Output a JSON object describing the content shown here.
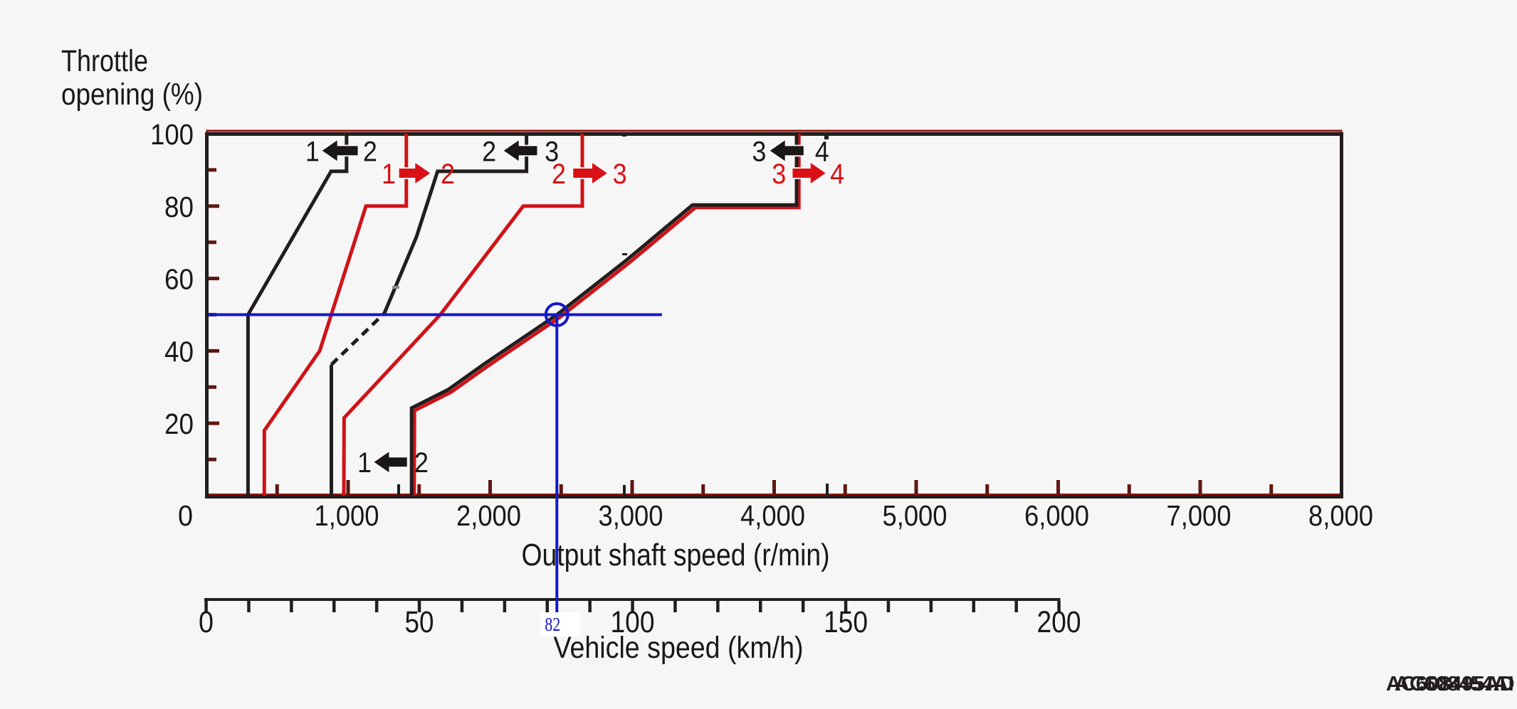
{
  "figure": {
    "background": "#f7f6f6",
    "colors": {
      "black": "#221e1e",
      "red": "#cf1318",
      "red_bright": "#d91116",
      "border_red": "#951712",
      "tick_dark_red": "#5e1712",
      "blue": "#1518c8",
      "text_black": "#1a1716",
      "gray_dash": "#8f8c8c",
      "white": "#ffffff"
    },
    "watermark_codes": [
      "AC608495AD",
      "AC608454AI"
    ]
  },
  "chart_data": {
    "type": "line",
    "title": "",
    "ylabel_lines": [
      "Throttle",
      "opening (%)"
    ],
    "xlabel": "Output shaft speed (r/min)",
    "x2label": "Vehicle speed (km/h)",
    "x_axis": {
      "min": 0,
      "max": 8000,
      "minor_step": 500,
      "major_step": 1000,
      "tick_labels": [
        "0",
        "1,000",
        "2,000",
        "3,000",
        "4,000",
        "5,000",
        "6,000",
        "7,000",
        "8,000"
      ]
    },
    "y_axis": {
      "min": 0,
      "max": 100,
      "minor_step": 10,
      "major_step": 20,
      "tick_labels": [
        "0",
        "20",
        "40",
        "60",
        "80",
        "100"
      ]
    },
    "x2_axis": {
      "min": 0,
      "max": 200,
      "minor_step": 10,
      "label_step": 50,
      "tick_labels": [
        "0",
        "50",
        "100",
        "150",
        "200"
      ]
    },
    "grid": false,
    "legend": false,
    "series": [
      {
        "id": "upshift-1-2",
        "name": "1-2 upshift",
        "color": "red",
        "style": "solid",
        "points": [
          [
            410,
            0
          ],
          [
            410,
            18
          ],
          [
            800,
            40
          ],
          [
            1126,
            80
          ],
          [
            1410,
            80
          ],
          [
            1410,
            100
          ]
        ]
      },
      {
        "id": "upshift-2-3",
        "name": "2-3 upshift",
        "color": "red",
        "style": "solid",
        "points": [
          [
            970,
            0
          ],
          [
            972,
            21.5
          ],
          [
            1649,
            50
          ],
          [
            2233,
            80
          ],
          [
            2649,
            80
          ],
          [
            2649,
            100
          ]
        ]
      },
      {
        "id": "upshift-3-4",
        "name": "3-4 upshift",
        "color": "red",
        "style": "solid",
        "points": [
          [
            1465,
            0
          ],
          [
            1467,
            23.5
          ],
          [
            1725,
            28.6
          ],
          [
            1976,
            35.6
          ],
          [
            2491,
            49.3
          ],
          [
            2978,
            64.3
          ],
          [
            3445,
            79.6
          ],
          [
            4174,
            79.6
          ],
          [
            4174,
            100
          ]
        ]
      },
      {
        "id": "downshift-2-1",
        "name": "2-1 downshift",
        "color": "black",
        "style": "solid",
        "points": [
          [
            295,
            0
          ],
          [
            295,
            50
          ],
          [
            880,
            89.6
          ],
          [
            989,
            89.6
          ],
          [
            989,
            100
          ]
        ]
      },
      {
        "id": "downshift-3-2",
        "name": "3-2 downshift",
        "color": "black",
        "style": "dashed_middle",
        "dash_from": 1,
        "dash_to": 2,
        "points": [
          [
            882,
            0
          ],
          [
            882,
            36.2
          ],
          [
            1255,
            50.4
          ],
          [
            1481,
            71.5
          ],
          [
            1630,
            89.6
          ],
          [
            2256,
            89.6
          ],
          [
            2256,
            100
          ]
        ]
      },
      {
        "id": "downshift-4-3",
        "name": "4-3 downshift",
        "color": "black",
        "style": "solid",
        "points": [
          [
            1447,
            0
          ],
          [
            1447,
            24.2
          ],
          [
            1705,
            29.3
          ],
          [
            1956,
            36.3
          ],
          [
            2471,
            50
          ],
          [
            2958,
            65
          ],
          [
            3425,
            80.3
          ],
          [
            4158,
            80.3
          ],
          [
            4158,
            100
          ]
        ]
      }
    ],
    "shift_labels": [
      {
        "id": "downshift-1-2-top",
        "from": "1",
        "to": "2",
        "color": "black",
        "direction": "left",
        "pct": 95.3,
        "digit1_rmin": 749,
        "arrow_tip_rmin": 818,
        "arrow_tail_rmin": 1068,
        "digit2_rmin": 1155
      },
      {
        "id": "upshift-1-2",
        "from": "1",
        "to": "2",
        "color": "red",
        "direction": "right",
        "pct": 89.1,
        "digit1_rmin": 1286,
        "arrow_tail_rmin": 1359,
        "arrow_tip_rmin": 1578,
        "digit2_rmin": 1702
      },
      {
        "id": "downshift-2-3-top",
        "from": "2",
        "to": "3",
        "color": "black",
        "direction": "left",
        "pct": 95.3,
        "digit1_rmin": 1993,
        "arrow_tip_rmin": 2096,
        "arrow_tail_rmin": 2331,
        "digit2_rmin": 2434
      },
      {
        "id": "upshift-2-3",
        "from": "2",
        "to": "3",
        "color": "red",
        "direction": "right",
        "pct": 89.1,
        "digit1_rmin": 2484,
        "arrow_tail_rmin": 2585,
        "arrow_tip_rmin": 2824,
        "digit2_rmin": 2913
      },
      {
        "id": "downshift-3-4-top",
        "from": "3",
        "to": "4",
        "color": "black",
        "direction": "left",
        "pct": 95.3,
        "digit1_rmin": 3894,
        "arrow_tip_rmin": 3971,
        "arrow_tail_rmin": 4207,
        "digit2_rmin": 4337
      },
      {
        "id": "upshift-3-4",
        "from": "3",
        "to": "4",
        "color": "red",
        "direction": "right",
        "pct": 89.1,
        "digit1_rmin": 4034,
        "arrow_tail_rmin": 4130,
        "arrow_tip_rmin": 4362,
        "digit2_rmin": 4444
      },
      {
        "id": "downshift-1-2-bottom",
        "from": "1",
        "to": "2",
        "color": "black",
        "direction": "left",
        "pct": 9.3,
        "digit1_rmin": 1115,
        "arrow_tip_rmin": 1183,
        "arrow_tail_rmin": 1415,
        "digit2_rmin": 1516
      }
    ],
    "annotation": {
      "throttle_pct": 50,
      "output_shaft_rmin": 2470,
      "hline_to_rmin": 3210,
      "vehicle_speed_kmh": 82,
      "label": "82"
    }
  }
}
